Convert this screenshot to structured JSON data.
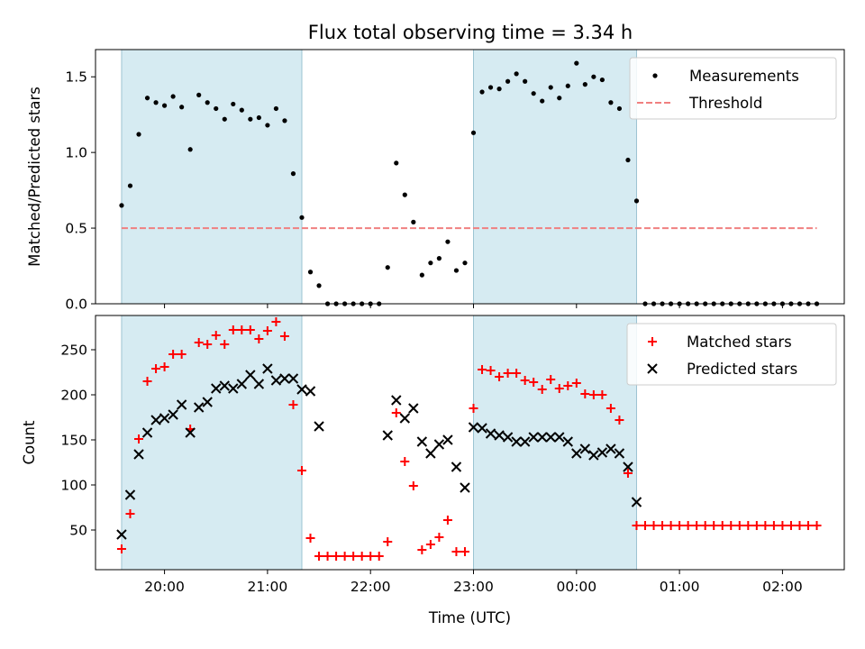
{
  "chart_data": [
    {
      "type": "scatter",
      "title": "Flux total observing time = 3.34 h",
      "xlabel": "",
      "ylabel": "Matched/Predicted stars",
      "ylim": [
        0,
        1.68
      ],
      "xlim_hours": [
        19.33,
        26.6
      ],
      "y_ticks": [
        "0.0",
        "0.5",
        "1.0",
        "1.5"
      ],
      "y_tick_values": [
        0,
        0.5,
        1.0,
        1.5
      ],
      "legend_position": "top-right",
      "shaded_spans": [
        {
          "start": "19:35",
          "end": "21:20"
        },
        {
          "start": "23:00",
          "end": "00:35"
        }
      ],
      "series": [
        {
          "name": "Measurements",
          "marker": "dot",
          "color": "#000000",
          "x": [
            "19:35",
            "19:40",
            "19:45",
            "19:50",
            "19:55",
            "20:00",
            "20:05",
            "20:10",
            "20:15",
            "20:20",
            "20:25",
            "20:30",
            "20:35",
            "20:40",
            "20:45",
            "20:50",
            "20:55",
            "21:00",
            "21:05",
            "21:10",
            "21:15",
            "21:20",
            "21:25",
            "21:30",
            "21:35",
            "21:40",
            "21:45",
            "21:50",
            "21:55",
            "22:00",
            "22:05",
            "22:10",
            "22:15",
            "22:20",
            "22:25",
            "22:30",
            "22:35",
            "22:40",
            "22:45",
            "22:50",
            "22:55",
            "23:00",
            "23:05",
            "23:10",
            "23:15",
            "23:20",
            "23:25",
            "23:30",
            "23:35",
            "23:40",
            "23:45",
            "23:50",
            "23:55",
            "00:00",
            "00:05",
            "00:10",
            "00:15",
            "00:20",
            "00:25",
            "00:30",
            "00:35",
            "00:40",
            "00:45",
            "00:50",
            "00:55",
            "01:00",
            "01:05",
            "01:10",
            "01:15",
            "01:20",
            "01:25",
            "01:30",
            "01:35",
            "01:40",
            "01:45",
            "01:50",
            "01:55",
            "02:00",
            "02:05",
            "02:10",
            "02:15",
            "02:20"
          ],
          "values": [
            0.65,
            0.78,
            1.12,
            1.36,
            1.33,
            1.31,
            1.37,
            1.3,
            1.02,
            1.38,
            1.33,
            1.29,
            1.22,
            1.32,
            1.28,
            1.22,
            1.23,
            1.18,
            1.29,
            1.21,
            0.86,
            0.57,
            0.21,
            0.12,
            0,
            0,
            0,
            0,
            0,
            0,
            0,
            0.24,
            0.93,
            0.72,
            0.54,
            0.19,
            0.27,
            0.3,
            0.41,
            0.22,
            0.27,
            1.13,
            1.4,
            1.43,
            1.42,
            1.47,
            1.52,
            1.47,
            1.39,
            1.34,
            1.43,
            1.36,
            1.44,
            1.59,
            1.45,
            1.5,
            1.48,
            1.33,
            1.29,
            0.95,
            0.68,
            0,
            0,
            0,
            0,
            0,
            0,
            0,
            0,
            0,
            0,
            0,
            0,
            0,
            0,
            0,
            0,
            0,
            0,
            0,
            0,
            0
          ]
        },
        {
          "name": "Threshold",
          "style": "dashed",
          "color": "#f08080",
          "x": [
            "19:35",
            "02:20"
          ],
          "values": [
            0.5,
            0.5
          ]
        }
      ]
    },
    {
      "type": "scatter",
      "title": "",
      "xlabel": "Time (UTC)",
      "ylabel": "Count",
      "ylim": [
        6,
        288
      ],
      "xlim_hours": [
        19.33,
        26.6
      ],
      "y_ticks": [
        "50",
        "100",
        "150",
        "200",
        "250"
      ],
      "y_tick_values": [
        50,
        100,
        150,
        200,
        250
      ],
      "x_ticks": [
        "20:00",
        "21:00",
        "22:00",
        "23:00",
        "00:00",
        "01:00",
        "02:00"
      ],
      "x_tick_hours": [
        20,
        21,
        22,
        23,
        24,
        25,
        26
      ],
      "legend_position": "top-right",
      "shaded_spans": [
        {
          "start": "19:35",
          "end": "21:20"
        },
        {
          "start": "23:00",
          "end": "00:35"
        }
      ],
      "series": [
        {
          "name": "Matched stars",
          "marker": "plus",
          "color": "#ff0000",
          "x": [
            "19:35",
            "19:40",
            "19:45",
            "19:50",
            "19:55",
            "20:00",
            "20:05",
            "20:10",
            "20:15",
            "20:20",
            "20:25",
            "20:30",
            "20:35",
            "20:40",
            "20:45",
            "20:50",
            "20:55",
            "21:00",
            "21:05",
            "21:10",
            "21:15",
            "21:20",
            "21:25",
            "21:30",
            "21:35",
            "21:40",
            "21:45",
            "21:50",
            "21:55",
            "22:00",
            "22:05",
            "22:10",
            "22:15",
            "22:20",
            "22:25",
            "22:30",
            "22:35",
            "22:40",
            "22:45",
            "22:50",
            "22:55",
            "23:00",
            "23:05",
            "23:10",
            "23:15",
            "23:20",
            "23:25",
            "23:30",
            "23:35",
            "23:40",
            "23:45",
            "23:50",
            "23:55",
            "00:00",
            "00:05",
            "00:10",
            "00:15",
            "00:20",
            "00:25",
            "00:30",
            "00:35",
            "00:40",
            "00:45",
            "00:50",
            "00:55",
            "01:00",
            "01:05",
            "01:10",
            "01:15",
            "01:20",
            "01:25",
            "01:30",
            "01:35",
            "01:40",
            "01:45",
            "01:50",
            "01:55",
            "02:00",
            "02:05",
            "02:10",
            "02:15",
            "02:20"
          ],
          "values": [
            29,
            68,
            151,
            215,
            229,
            231,
            245,
            245,
            162,
            258,
            256,
            266,
            256,
            272,
            272,
            272,
            262,
            271,
            281,
            265,
            189,
            116,
            41,
            21,
            21,
            21,
            21,
            21,
            21,
            21,
            21,
            37,
            180,
            126,
            99,
            28,
            34,
            42,
            61,
            26,
            26,
            185,
            228,
            227,
            220,
            224,
            224,
            216,
            214,
            206,
            217,
            207,
            210,
            213,
            201,
            200,
            200,
            185,
            172,
            113,
            55,
            55,
            55,
            55,
            55,
            55,
            55,
            55,
            55,
            55,
            55,
            55,
            55,
            55,
            55,
            55,
            55,
            55,
            55,
            55,
            55,
            55
          ]
        },
        {
          "name": "Predicted stars",
          "marker": "x",
          "color": "#000000",
          "x": [
            "19:35",
            "19:40",
            "19:45",
            "19:50",
            "19:55",
            "20:00",
            "20:05",
            "20:10",
            "20:15",
            "20:20",
            "20:25",
            "20:30",
            "20:35",
            "20:40",
            "20:45",
            "20:50",
            "20:55",
            "21:00",
            "21:05",
            "21:10",
            "21:15",
            "21:20",
            "21:25",
            "21:30",
            "22:10",
            "22:15",
            "22:20",
            "22:25",
            "22:30",
            "22:35",
            "22:40",
            "22:45",
            "22:50",
            "22:55",
            "23:00",
            "23:05",
            "23:10",
            "23:15",
            "23:20",
            "23:25",
            "23:30",
            "23:35",
            "23:40",
            "23:45",
            "23:50",
            "23:55",
            "00:00",
            "00:05",
            "00:10",
            "00:15",
            "00:20",
            "00:25",
            "00:30",
            "00:35"
          ],
          "values": [
            45,
            89,
            134,
            158,
            172,
            174,
            178,
            189,
            158,
            186,
            192,
            207,
            210,
            207,
            212,
            222,
            212,
            229,
            216,
            218,
            218,
            206,
            204,
            165,
            155,
            194,
            174,
            185,
            148,
            135,
            145,
            150,
            120,
            97,
            164,
            163,
            157,
            155,
            153,
            148,
            148,
            153,
            153,
            153,
            153,
            148,
            135,
            140,
            133,
            136,
            140,
            135,
            120,
            81
          ]
        }
      ]
    }
  ]
}
